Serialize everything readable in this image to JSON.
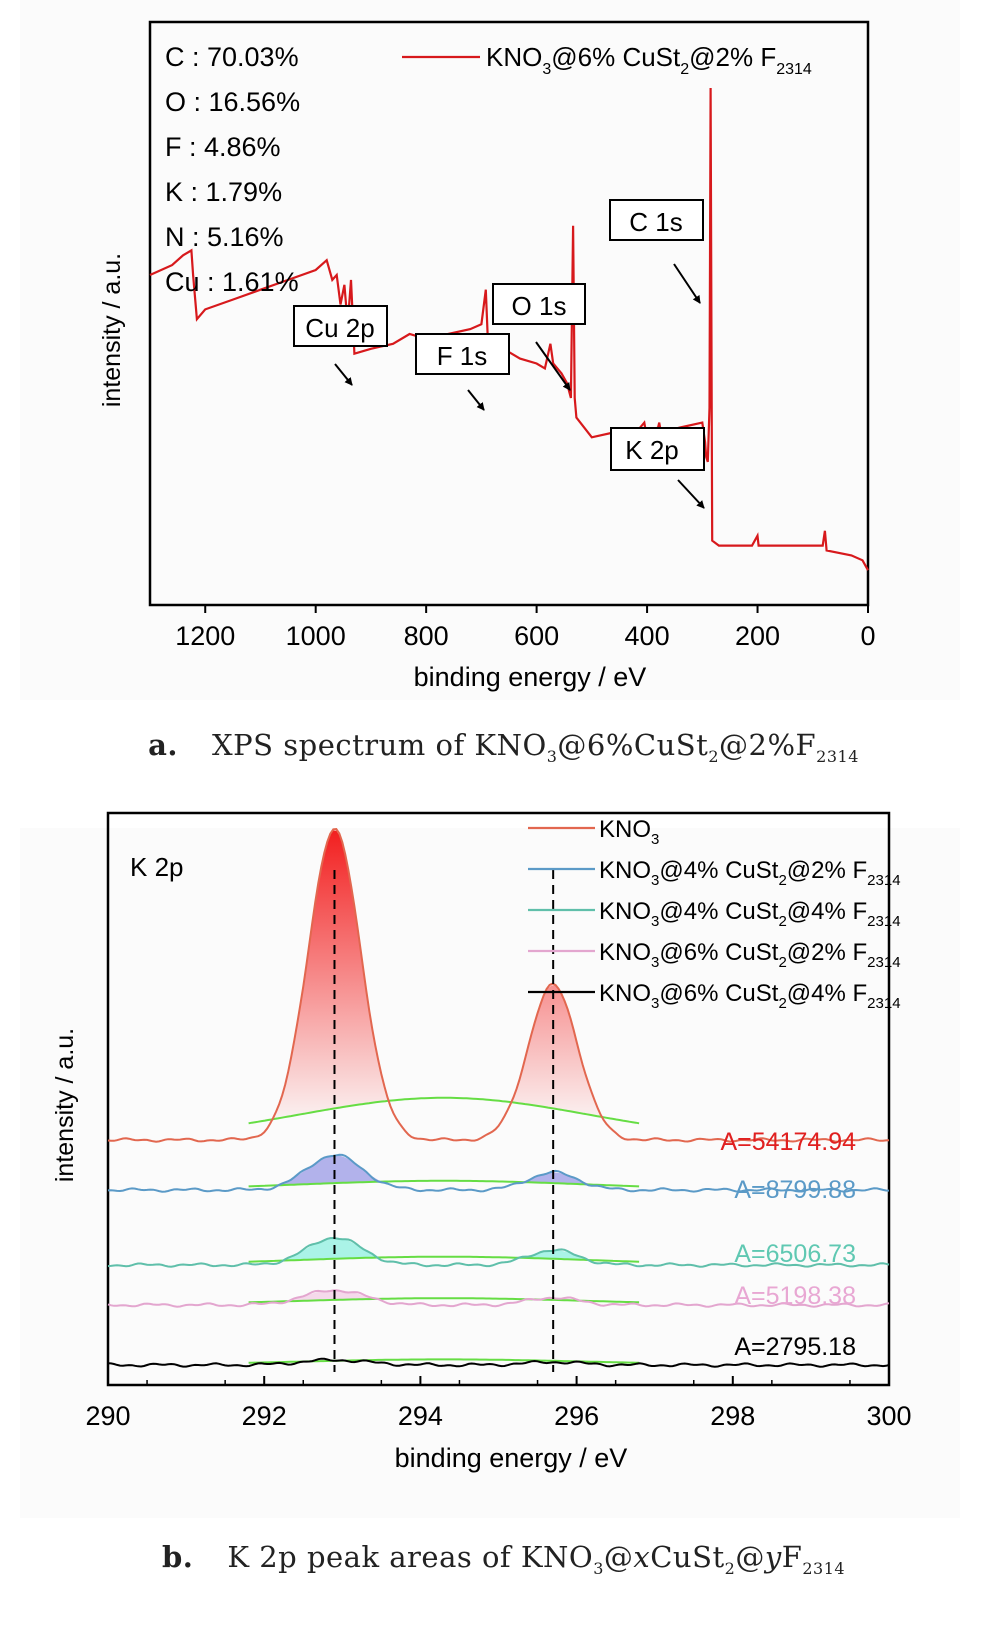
{
  "charts": {
    "a": {
      "ylabel": "intensity / a.u.",
      "xlabel": "binding energy / eV",
      "caption": {
        "label": "a.",
        "text_main": "XPS spectrum of KNO",
        "s1": "3",
        "t2": "@6%CuSt",
        "s2": "2",
        "t3": "@2%F",
        "s3": "2314"
      },
      "composition": [
        "C : 70.03%",
        "O : 16.56%",
        "F : 4.86%",
        "K : 1.79%",
        "N : 5.16%",
        "Cu : 1.61%"
      ],
      "legend": {
        "main": "KNO",
        "s1": "3",
        "t2": "@6% CuSt",
        "s2": "2",
        "t3": "@2% F",
        "s3": "2314"
      },
      "peak_labels": [
        "C 1s",
        "O 1s",
        "F 1s",
        "Cu 2p",
        "K 2p"
      ]
    },
    "b": {
      "ylabel": "intensity / a.u.",
      "xlabel": "binding energy / eV",
      "panel_label": "K 2p",
      "caption": {
        "label": "b.",
        "text_main": "K 2p peak areas of KNO",
        "s1": "3",
        "t2": "@",
        "x": "x",
        "t3": "CuSt",
        "s2": "2",
        "t4": "@",
        "y": "y",
        "t5": "F",
        "s3": "2314"
      },
      "areas": [
        "A=54174.94",
        "A=8799.88",
        "A=6506.73",
        "A=5198.38",
        "A=2795.18"
      ]
    }
  },
  "chart_data": [
    {
      "type": "line",
      "title": "",
      "xlabel": "binding energy / eV",
      "ylabel": "intensity / a.u.",
      "xlim": [
        1300,
        0
      ],
      "x_reversed": true,
      "xticks": [
        1200,
        1000,
        800,
        600,
        400,
        200,
        0
      ],
      "y_ticks_shown": false,
      "series": [
        {
          "name": "KNO3@6% CuSt2@2% F2314",
          "color": "#d7191c",
          "points": [
            [
              1300,
              0.62
            ],
            [
              1260,
              0.64
            ],
            [
              1240,
              0.66
            ],
            [
              1225,
              0.67
            ],
            [
              1222,
              0.62
            ],
            [
              1215,
              0.53
            ],
            [
              1200,
              0.55
            ],
            [
              1150,
              0.57
            ],
            [
              1100,
              0.59
            ],
            [
              1050,
              0.61
            ],
            [
              1000,
              0.63
            ],
            [
              980,
              0.65
            ],
            [
              970,
              0.61
            ],
            [
              962,
              0.62
            ],
            [
              955,
              0.56
            ],
            [
              948,
              0.6
            ],
            [
              942,
              0.52
            ],
            [
              936,
              0.61
            ],
            [
              930,
              0.46
            ],
            [
              900,
              0.47
            ],
            [
              860,
              0.48
            ],
            [
              830,
              0.5
            ],
            [
              800,
              0.49
            ],
            [
              760,
              0.5
            ],
            [
              720,
              0.51
            ],
            [
              700,
              0.52
            ],
            [
              692,
              0.59
            ],
            [
              688,
              0.48
            ],
            [
              660,
              0.47
            ],
            [
              630,
              0.45
            ],
            [
              600,
              0.44
            ],
            [
              585,
              0.43
            ],
            [
              575,
              0.48
            ],
            [
              570,
              0.44
            ],
            [
              555,
              0.42
            ],
            [
              545,
              0.4
            ],
            [
              538,
              0.37
            ],
            [
              534,
              0.72
            ],
            [
              531,
              0.37
            ],
            [
              528,
              0.33
            ],
            [
              500,
              0.29
            ],
            [
              460,
              0.3
            ],
            [
              420,
              0.3
            ],
            [
              405,
              0.32
            ],
            [
              402,
              0.3
            ],
            [
              380,
              0.31
            ],
            [
              378,
              0.32
            ],
            [
              375,
              0.3
            ],
            [
              340,
              0.31
            ],
            [
              300,
              0.32
            ],
            [
              295,
              0.28
            ],
            [
              293,
              0.25
            ],
            [
              290,
              0.24
            ],
            [
              287,
              0.35
            ],
            [
              285,
              1.0
            ],
            [
              283,
              0.35
            ],
            [
              282,
              0.08
            ],
            [
              270,
              0.07
            ],
            [
              210,
              0.07
            ],
            [
              200,
              0.09
            ],
            [
              198,
              0.07
            ],
            [
              120,
              0.07
            ],
            [
              82,
              0.07
            ],
            [
              78,
              0.1
            ],
            [
              75,
              0.06
            ],
            [
              30,
              0.05
            ],
            [
              10,
              0.04
            ],
            [
              0,
              0.02
            ]
          ]
        }
      ],
      "annotations": [
        {
          "text": "C 1s",
          "x": 285
        },
        {
          "text": "O 1s",
          "x": 531
        },
        {
          "text": "F 1s",
          "x": 688
        },
        {
          "text": "Cu 2p",
          "x": 933
        },
        {
          "text": "K 2p",
          "x": 294
        }
      ]
    },
    {
      "type": "line",
      "title": "",
      "xlabel": "binding energy / eV",
      "ylabel": "intensity / a.u.",
      "xlim": [
        290,
        300
      ],
      "xticks": [
        290,
        292,
        294,
        296,
        298,
        300
      ],
      "y_ticks_shown": false,
      "reference_lines_x": [
        292.9,
        295.7
      ],
      "series": [
        {
          "name": "KNO3@6% CuSt2@4% F2314",
          "color": "#000000",
          "fill": null,
          "area": "A=2795.18",
          "baseline": 0.0,
          "peaks": [
            {
              "center": 292.9,
              "height": 0.01,
              "width": 0.6
            },
            {
              "center": 295.7,
              "height": 0.006,
              "width": 0.5
            }
          ]
        },
        {
          "name": "KNO3@6% CuSt2@2% F2314",
          "color": "#e3a6cf",
          "fill": "#f3cde6",
          "area": "A=5198.38",
          "baseline": 0.12,
          "peaks": [
            {
              "center": 292.9,
              "height": 0.03,
              "width": 0.55
            },
            {
              "center": 295.7,
              "height": 0.015,
              "width": 0.45
            }
          ]
        },
        {
          "name": "KNO3@4% CuSt2@4% F2314",
          "color": "#5fbfaa",
          "fill": "#8ff0e0",
          "area": "A=6506.73",
          "baseline": 0.2,
          "peaks": [
            {
              "center": 292.9,
              "height": 0.055,
              "width": 0.5
            },
            {
              "center": 295.7,
              "height": 0.03,
              "width": 0.45
            }
          ]
        },
        {
          "name": "KNO3@4% CuSt2@2% F2314",
          "color": "#5b9ac7",
          "fill": "#9a9ae6",
          "area": "A=8799.88",
          "baseline": 0.35,
          "peaks": [
            {
              "center": 292.9,
              "height": 0.07,
              "width": 0.5
            },
            {
              "center": 295.7,
              "height": 0.035,
              "width": 0.45
            }
          ]
        },
        {
          "name": "KNO3",
          "color": "#e2674f",
          "fill": "#f23c3c",
          "area": "A=54174.94",
          "baseline": 0.45,
          "peaks": [
            {
              "center": 292.9,
              "height": 0.62,
              "width": 0.48
            },
            {
              "center": 295.7,
              "height": 0.31,
              "width": 0.45
            }
          ]
        }
      ],
      "legend_placement": "top-right"
    }
  ]
}
